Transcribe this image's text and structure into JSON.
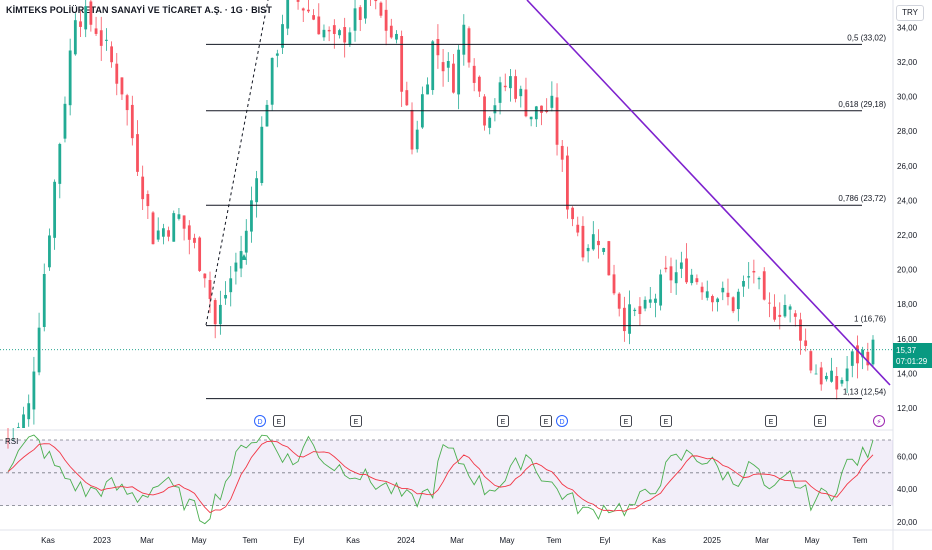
{
  "header": {
    "title": "KİMTEKS POLİÜRETAN SANAYİ VE TİCARET A.Ş. · 1G · BIST",
    "currency": "TRY"
  },
  "price_tag": {
    "price": "15,37",
    "countdown": "07:01:29"
  },
  "rsi": {
    "label": "RSI"
  },
  "colors": {
    "up": "#22ab94",
    "down": "#f7525f",
    "trend": "#7e22ce",
    "rsi_line": "#4caf50",
    "rsi_ma": "#f23645",
    "rsi_band": "#7e57c2",
    "fib": "#131722",
    "last": "#089981"
  },
  "chart_data": [
    {
      "type": "candlestick",
      "x_labels": [
        "Kas",
        "2023",
        "Mar",
        "May",
        "Tem",
        "Eyl",
        "Kas",
        "2024",
        "Mar",
        "May",
        "Tem",
        "Eyl",
        "Kas",
        "2025",
        "Mar",
        "May",
        "Tem"
      ],
      "y_ticks": [
        "12,00",
        "14,00",
        "16,00",
        "18,00",
        "20,00",
        "22,00",
        "24,00",
        "26,00",
        "28,00",
        "30,00",
        "32,00",
        "34,00"
      ],
      "ylim": [
        12,
        34
      ],
      "close_anchors": [
        [
          0,
          9.5
        ],
        [
          4,
          12.0
        ],
        [
          8,
          22.5
        ],
        [
          13,
          35.0
        ],
        [
          17,
          34.0
        ],
        [
          22,
          30.5
        ],
        [
          28,
          22.0
        ],
        [
          33,
          23.0
        ],
        [
          38,
          20.0
        ],
        [
          40,
          16.8
        ],
        [
          43,
          19.5
        ],
        [
          46,
          22.0
        ],
        [
          50,
          30.0
        ],
        [
          54,
          36.0
        ],
        [
          58,
          35.0
        ],
        [
          63,
          33.0
        ],
        [
          70,
          35.5
        ],
        [
          75,
          33.0
        ],
        [
          78,
          27.0
        ],
        [
          82,
          33.0
        ],
        [
          86,
          31.0
        ],
        [
          88,
          34.0
        ],
        [
          92,
          29.0
        ],
        [
          97,
          31.0
        ],
        [
          101,
          29.0
        ],
        [
          105,
          29.3
        ],
        [
          108,
          24.0
        ],
        [
          111,
          21.5
        ],
        [
          114,
          22.0
        ],
        [
          116,
          20.0
        ],
        [
          119,
          17.2
        ],
        [
          123,
          17.5
        ],
        [
          127,
          19.5
        ],
        [
          131,
          20.0
        ],
        [
          135,
          19.0
        ],
        [
          140,
          18.0
        ],
        [
          144,
          20.0
        ],
        [
          146,
          17.5
        ],
        [
          150,
          18.0
        ],
        [
          153,
          16.5
        ],
        [
          155,
          14.5
        ],
        [
          157,
          13.8
        ],
        [
          160,
          13.2
        ],
        [
          163,
          14.8
        ],
        [
          167,
          15.37
        ]
      ],
      "fib_levels": [
        {
          "ratio": "0,5",
          "value": 33.02,
          "label": "0,5 (33,02)"
        },
        {
          "ratio": "0,618",
          "value": 29.18,
          "label": "0,618 (29,18)"
        },
        {
          "ratio": "0,786",
          "value": 23.72,
          "label": "0,786 (23,72)"
        },
        {
          "ratio": "1",
          "value": 16.76,
          "label": "1 (16,76)"
        },
        {
          "ratio": "1,13",
          "value": 12.54,
          "label": "1,13 (12,54)"
        }
      ],
      "last_price": 15.37,
      "events": [
        "D",
        "E",
        "E",
        "E",
        "E",
        "D",
        "E",
        "E",
        "E",
        "E"
      ]
    },
    {
      "type": "line",
      "name": "RSI",
      "y_ticks": [
        "20,00",
        "40,00",
        "60,00"
      ],
      "ylim": [
        17,
        73
      ],
      "bands": [
        30,
        50,
        70
      ],
      "rsi_anchors": [
        [
          0,
          55
        ],
        [
          5,
          72
        ],
        [
          10,
          50
        ],
        [
          15,
          38
        ],
        [
          20,
          42
        ],
        [
          25,
          35
        ],
        [
          30,
          45
        ],
        [
          35,
          30
        ],
        [
          38,
          22
        ],
        [
          42,
          45
        ],
        [
          46,
          70
        ],
        [
          50,
          72
        ],
        [
          55,
          55
        ],
        [
          58,
          70
        ],
        [
          62,
          55
        ],
        [
          66,
          52
        ],
        [
          70,
          45
        ],
        [
          74,
          40
        ],
        [
          78,
          32
        ],
        [
          82,
          40
        ],
        [
          84,
          65
        ],
        [
          88,
          55
        ],
        [
          92,
          40
        ],
        [
          96,
          45
        ],
        [
          100,
          62
        ],
        [
          104,
          45
        ],
        [
          108,
          35
        ],
        [
          112,
          25
        ],
        [
          116,
          30
        ],
        [
          120,
          28
        ],
        [
          124,
          38
        ],
        [
          128,
          56
        ],
        [
          132,
          62
        ],
        [
          136,
          55
        ],
        [
          140,
          45
        ],
        [
          144,
          55
        ],
        [
          147,
          35
        ],
        [
          151,
          48
        ],
        [
          155,
          33
        ],
        [
          159,
          38
        ],
        [
          162,
          55
        ],
        [
          165,
          60
        ],
        [
          167,
          65
        ]
      ]
    }
  ]
}
